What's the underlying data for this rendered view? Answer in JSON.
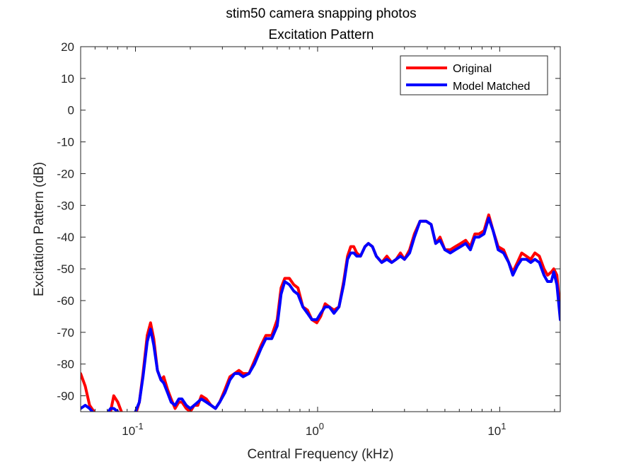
{
  "chart_data": {
    "type": "line",
    "title": [
      "stim50 camera snapping photos",
      "Excitation Pattern"
    ],
    "xlabel": "Central Frequency (kHz)",
    "ylabel": "Excitation Pattern (dB)",
    "xscale": "log",
    "xlim": [
      0.05,
      21.5
    ],
    "ylim": [
      -95,
      20
    ],
    "yticks": [
      20,
      10,
      0,
      -10,
      -20,
      -30,
      -40,
      -50,
      -60,
      -70,
      -80,
      -90
    ],
    "xticks": [
      {
        "value": 0.1,
        "base": "10",
        "exp": "-1"
      },
      {
        "value": 1,
        "base": "10",
        "exp": "0"
      },
      {
        "value": 10,
        "base": "10",
        "exp": "1"
      }
    ],
    "grid": false,
    "legend_position": "top-right",
    "series": [
      {
        "name": "Original",
        "color": "#ff0000",
        "points": [
          [
            0.05,
            -83
          ],
          [
            0.053,
            -87
          ],
          [
            0.056,
            -93
          ],
          [
            0.06,
            -95.5
          ],
          [
            0.063,
            -96
          ],
          [
            0.068,
            -98
          ],
          [
            0.073,
            -95
          ],
          [
            0.076,
            -90
          ],
          [
            0.08,
            -92
          ],
          [
            0.085,
            -96
          ],
          [
            0.09,
            -98
          ],
          [
            0.095,
            -97
          ],
          [
            0.1,
            -96
          ],
          [
            0.105,
            -92
          ],
          [
            0.11,
            -83
          ],
          [
            0.116,
            -71
          ],
          [
            0.121,
            -67
          ],
          [
            0.126,
            -72
          ],
          [
            0.132,
            -82
          ],
          [
            0.138,
            -85
          ],
          [
            0.143,
            -84
          ],
          [
            0.15,
            -88
          ],
          [
            0.157,
            -91
          ],
          [
            0.165,
            -94
          ],
          [
            0.173,
            -92
          ],
          [
            0.18,
            -92
          ],
          [
            0.19,
            -94
          ],
          [
            0.2,
            -95
          ],
          [
            0.21,
            -93
          ],
          [
            0.22,
            -93
          ],
          [
            0.23,
            -90
          ],
          [
            0.245,
            -91
          ],
          [
            0.26,
            -93
          ],
          [
            0.275,
            -94
          ],
          [
            0.29,
            -92
          ],
          [
            0.31,
            -88
          ],
          [
            0.33,
            -84
          ],
          [
            0.35,
            -83
          ],
          [
            0.37,
            -82
          ],
          [
            0.39,
            -83
          ],
          [
            0.42,
            -83
          ],
          [
            0.45,
            -79
          ],
          [
            0.49,
            -74
          ],
          [
            0.52,
            -71
          ],
          [
            0.56,
            -71
          ],
          [
            0.6,
            -66
          ],
          [
            0.63,
            -56
          ],
          [
            0.66,
            -53
          ],
          [
            0.7,
            -53
          ],
          [
            0.74,
            -55
          ],
          [
            0.78,
            -56
          ],
          [
            0.83,
            -62
          ],
          [
            0.88,
            -63
          ],
          [
            0.93,
            -66
          ],
          [
            0.99,
            -67
          ],
          [
            1.04,
            -65
          ],
          [
            1.1,
            -61
          ],
          [
            1.16,
            -62
          ],
          [
            1.23,
            -63
          ],
          [
            1.31,
            -62
          ],
          [
            1.39,
            -54
          ],
          [
            1.46,
            -46
          ],
          [
            1.52,
            -43
          ],
          [
            1.58,
            -43
          ],
          [
            1.64,
            -45
          ],
          [
            1.72,
            -46
          ],
          [
            1.82,
            -43
          ],
          [
            1.9,
            -42
          ],
          [
            2.0,
            -43
          ],
          [
            2.1,
            -46
          ],
          [
            2.25,
            -48
          ],
          [
            2.4,
            -46
          ],
          [
            2.55,
            -48
          ],
          [
            2.7,
            -47
          ],
          [
            2.85,
            -45
          ],
          [
            3.0,
            -47
          ],
          [
            3.2,
            -44
          ],
          [
            3.4,
            -39
          ],
          [
            3.65,
            -35
          ],
          [
            3.95,
            -35
          ],
          [
            4.2,
            -36
          ],
          [
            4.45,
            -42
          ],
          [
            4.7,
            -40
          ],
          [
            5.0,
            -44
          ],
          [
            5.35,
            -44
          ],
          [
            5.7,
            -43
          ],
          [
            6.1,
            -42
          ],
          [
            6.5,
            -41
          ],
          [
            6.9,
            -43
          ],
          [
            7.3,
            -39
          ],
          [
            7.7,
            -39
          ],
          [
            8.2,
            -38
          ],
          [
            8.7,
            -33
          ],
          [
            9.2,
            -38
          ],
          [
            9.8,
            -43
          ],
          [
            10.5,
            -44
          ],
          [
            11.2,
            -48
          ],
          [
            11.8,
            -51
          ],
          [
            12.5,
            -48
          ],
          [
            13.2,
            -45
          ],
          [
            14.0,
            -46
          ],
          [
            14.8,
            -47
          ],
          [
            15.6,
            -45
          ],
          [
            16.5,
            -46
          ],
          [
            17.5,
            -50
          ],
          [
            18.3,
            -52
          ],
          [
            19.2,
            -51
          ],
          [
            19.8,
            -50
          ],
          [
            20.6,
            -52
          ],
          [
            21.5,
            -64
          ]
        ]
      },
      {
        "name": "Model Matched",
        "color": "#0000ff",
        "points": [
          [
            0.05,
            -94
          ],
          [
            0.053,
            -93
          ],
          [
            0.056,
            -94
          ],
          [
            0.06,
            -96
          ],
          [
            0.063,
            -97
          ],
          [
            0.068,
            -96.5
          ],
          [
            0.073,
            -94
          ],
          [
            0.076,
            -94
          ],
          [
            0.08,
            -95
          ],
          [
            0.085,
            -97
          ],
          [
            0.09,
            -97.5
          ],
          [
            0.095,
            -97
          ],
          [
            0.1,
            -95
          ],
          [
            0.105,
            -92
          ],
          [
            0.11,
            -84
          ],
          [
            0.116,
            -73
          ],
          [
            0.121,
            -69
          ],
          [
            0.126,
            -74
          ],
          [
            0.132,
            -82
          ],
          [
            0.138,
            -85
          ],
          [
            0.143,
            -86
          ],
          [
            0.15,
            -89
          ],
          [
            0.157,
            -92
          ],
          [
            0.165,
            -93
          ],
          [
            0.173,
            -91
          ],
          [
            0.18,
            -91
          ],
          [
            0.19,
            -93
          ],
          [
            0.2,
            -94
          ],
          [
            0.21,
            -93
          ],
          [
            0.22,
            -92
          ],
          [
            0.23,
            -91
          ],
          [
            0.245,
            -92
          ],
          [
            0.26,
            -93
          ],
          [
            0.275,
            -94
          ],
          [
            0.29,
            -92
          ],
          [
            0.31,
            -89
          ],
          [
            0.33,
            -85
          ],
          [
            0.35,
            -83
          ],
          [
            0.37,
            -83
          ],
          [
            0.39,
            -84
          ],
          [
            0.42,
            -83
          ],
          [
            0.45,
            -80
          ],
          [
            0.49,
            -75
          ],
          [
            0.52,
            -72
          ],
          [
            0.56,
            -72
          ],
          [
            0.6,
            -68
          ],
          [
            0.63,
            -58
          ],
          [
            0.66,
            -54
          ],
          [
            0.7,
            -55
          ],
          [
            0.74,
            -57
          ],
          [
            0.78,
            -58
          ],
          [
            0.83,
            -62
          ],
          [
            0.88,
            -64
          ],
          [
            0.93,
            -66
          ],
          [
            0.99,
            -66
          ],
          [
            1.04,
            -64
          ],
          [
            1.1,
            -62
          ],
          [
            1.16,
            -62
          ],
          [
            1.23,
            -64
          ],
          [
            1.31,
            -62
          ],
          [
            1.39,
            -55
          ],
          [
            1.46,
            -47
          ],
          [
            1.52,
            -45
          ],
          [
            1.58,
            -45
          ],
          [
            1.64,
            -46
          ],
          [
            1.72,
            -46
          ],
          [
            1.82,
            -43
          ],
          [
            1.9,
            -42
          ],
          [
            2.0,
            -43
          ],
          [
            2.1,
            -46
          ],
          [
            2.25,
            -48
          ],
          [
            2.4,
            -47
          ],
          [
            2.55,
            -48
          ],
          [
            2.7,
            -47
          ],
          [
            2.85,
            -46
          ],
          [
            3.0,
            -47
          ],
          [
            3.2,
            -45
          ],
          [
            3.4,
            -40
          ],
          [
            3.65,
            -35
          ],
          [
            3.95,
            -35
          ],
          [
            4.2,
            -36
          ],
          [
            4.45,
            -42
          ],
          [
            4.7,
            -41
          ],
          [
            5.0,
            -44
          ],
          [
            5.35,
            -45
          ],
          [
            5.7,
            -44
          ],
          [
            6.1,
            -43
          ],
          [
            6.5,
            -42
          ],
          [
            6.9,
            -44
          ],
          [
            7.3,
            -40
          ],
          [
            7.7,
            -40
          ],
          [
            8.2,
            -39
          ],
          [
            8.7,
            -34
          ],
          [
            9.2,
            -38
          ],
          [
            9.8,
            -44
          ],
          [
            10.5,
            -45
          ],
          [
            11.2,
            -48
          ],
          [
            11.8,
            -52
          ],
          [
            12.5,
            -49
          ],
          [
            13.2,
            -47
          ],
          [
            14.0,
            -47
          ],
          [
            14.8,
            -48
          ],
          [
            15.6,
            -47
          ],
          [
            16.5,
            -48
          ],
          [
            17.5,
            -52
          ],
          [
            18.3,
            -54
          ],
          [
            19.2,
            -54
          ],
          [
            19.8,
            -51
          ],
          [
            20.6,
            -55
          ],
          [
            21.5,
            -66
          ]
        ]
      }
    ]
  }
}
